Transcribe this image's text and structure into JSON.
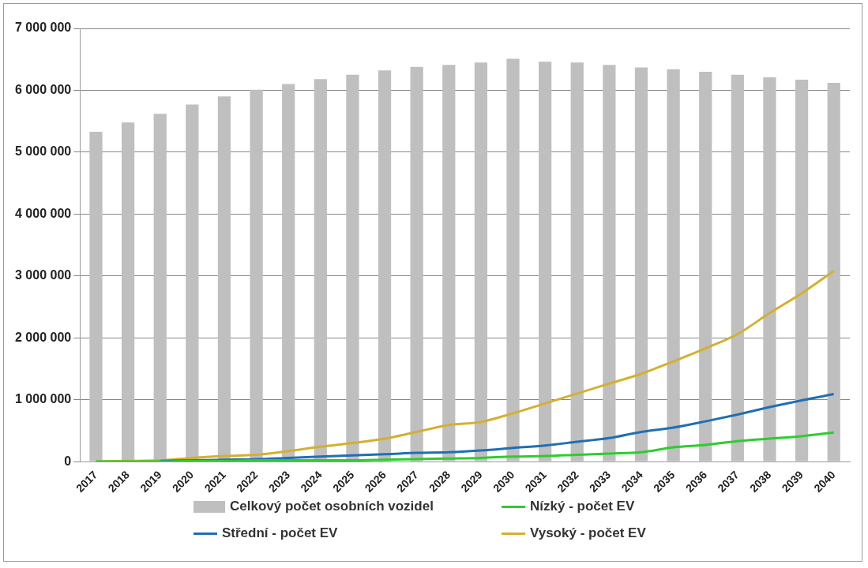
{
  "chart_data": {
    "type": "bar",
    "categories": [
      "2017",
      "2018",
      "2019",
      "2020",
      "2021",
      "2022",
      "2023",
      "2024",
      "2025",
      "2026",
      "2027",
      "2028",
      "2029",
      "2030",
      "2031",
      "2032",
      "2033",
      "2034",
      "2035",
      "2036",
      "2037",
      "2038",
      "2039",
      "2040"
    ],
    "series": [
      {
        "name": "Celkový počet osobních vozidel",
        "color": "#bfbfbf",
        "values": [
          5330000,
          5480000,
          5620000,
          5770000,
          5900000,
          6010000,
          6100000,
          6180000,
          6250000,
          6320000,
          6380000,
          6410000,
          6450000,
          6510000,
          6460000,
          6450000,
          6410000,
          6370000,
          6340000,
          6300000,
          6250000,
          6210000,
          6170000,
          6120000
        ]
      },
      {
        "name": "Nízký - počet EV",
        "type": "line",
        "color": "#2ecc2e",
        "values": [
          0,
          0,
          0,
          10000,
          10000,
          20000,
          20000,
          20000,
          20000,
          30000,
          40000,
          50000,
          60000,
          80000,
          90000,
          110000,
          130000,
          150000,
          230000,
          270000,
          330000,
          370000,
          410000,
          470000
        ]
      },
      {
        "name": "Střední - počet EV",
        "type": "line",
        "color": "#1f6fb4",
        "values": [
          null,
          null,
          10000,
          20000,
          30000,
          40000,
          60000,
          80000,
          100000,
          120000,
          140000,
          150000,
          180000,
          220000,
          260000,
          320000,
          380000,
          480000,
          550000,
          650000,
          760000,
          880000,
          990000,
          1090000
        ]
      },
      {
        "name": "Vysoký - počet EV",
        "type": "line",
        "color": "#d4b030",
        "values": [
          0,
          10000,
          20000,
          60000,
          90000,
          110000,
          170000,
          240000,
          300000,
          370000,
          480000,
          590000,
          640000,
          780000,
          940000,
          1100000,
          1260000,
          1420000,
          1620000,
          1830000,
          2060000,
          2400000,
          2720000,
          3080000
        ]
      }
    ],
    "ylim": [
      0,
      7000000
    ],
    "yticks": [
      {
        "value": 0,
        "label": "0"
      },
      {
        "value": 1000000,
        "label": "1 000 000"
      },
      {
        "value": 2000000,
        "label": "2 000 000"
      },
      {
        "value": 3000000,
        "label": "3 000 000"
      },
      {
        "value": 4000000,
        "label": "4 000 000"
      },
      {
        "value": 5000000,
        "label": "5 000 000"
      },
      {
        "value": 6000000,
        "label": "6 000 000"
      },
      {
        "value": 7000000,
        "label": "7 000 000"
      }
    ],
    "grid": "y",
    "legend": "bottom",
    "marker": "none",
    "line_style": "solid"
  }
}
